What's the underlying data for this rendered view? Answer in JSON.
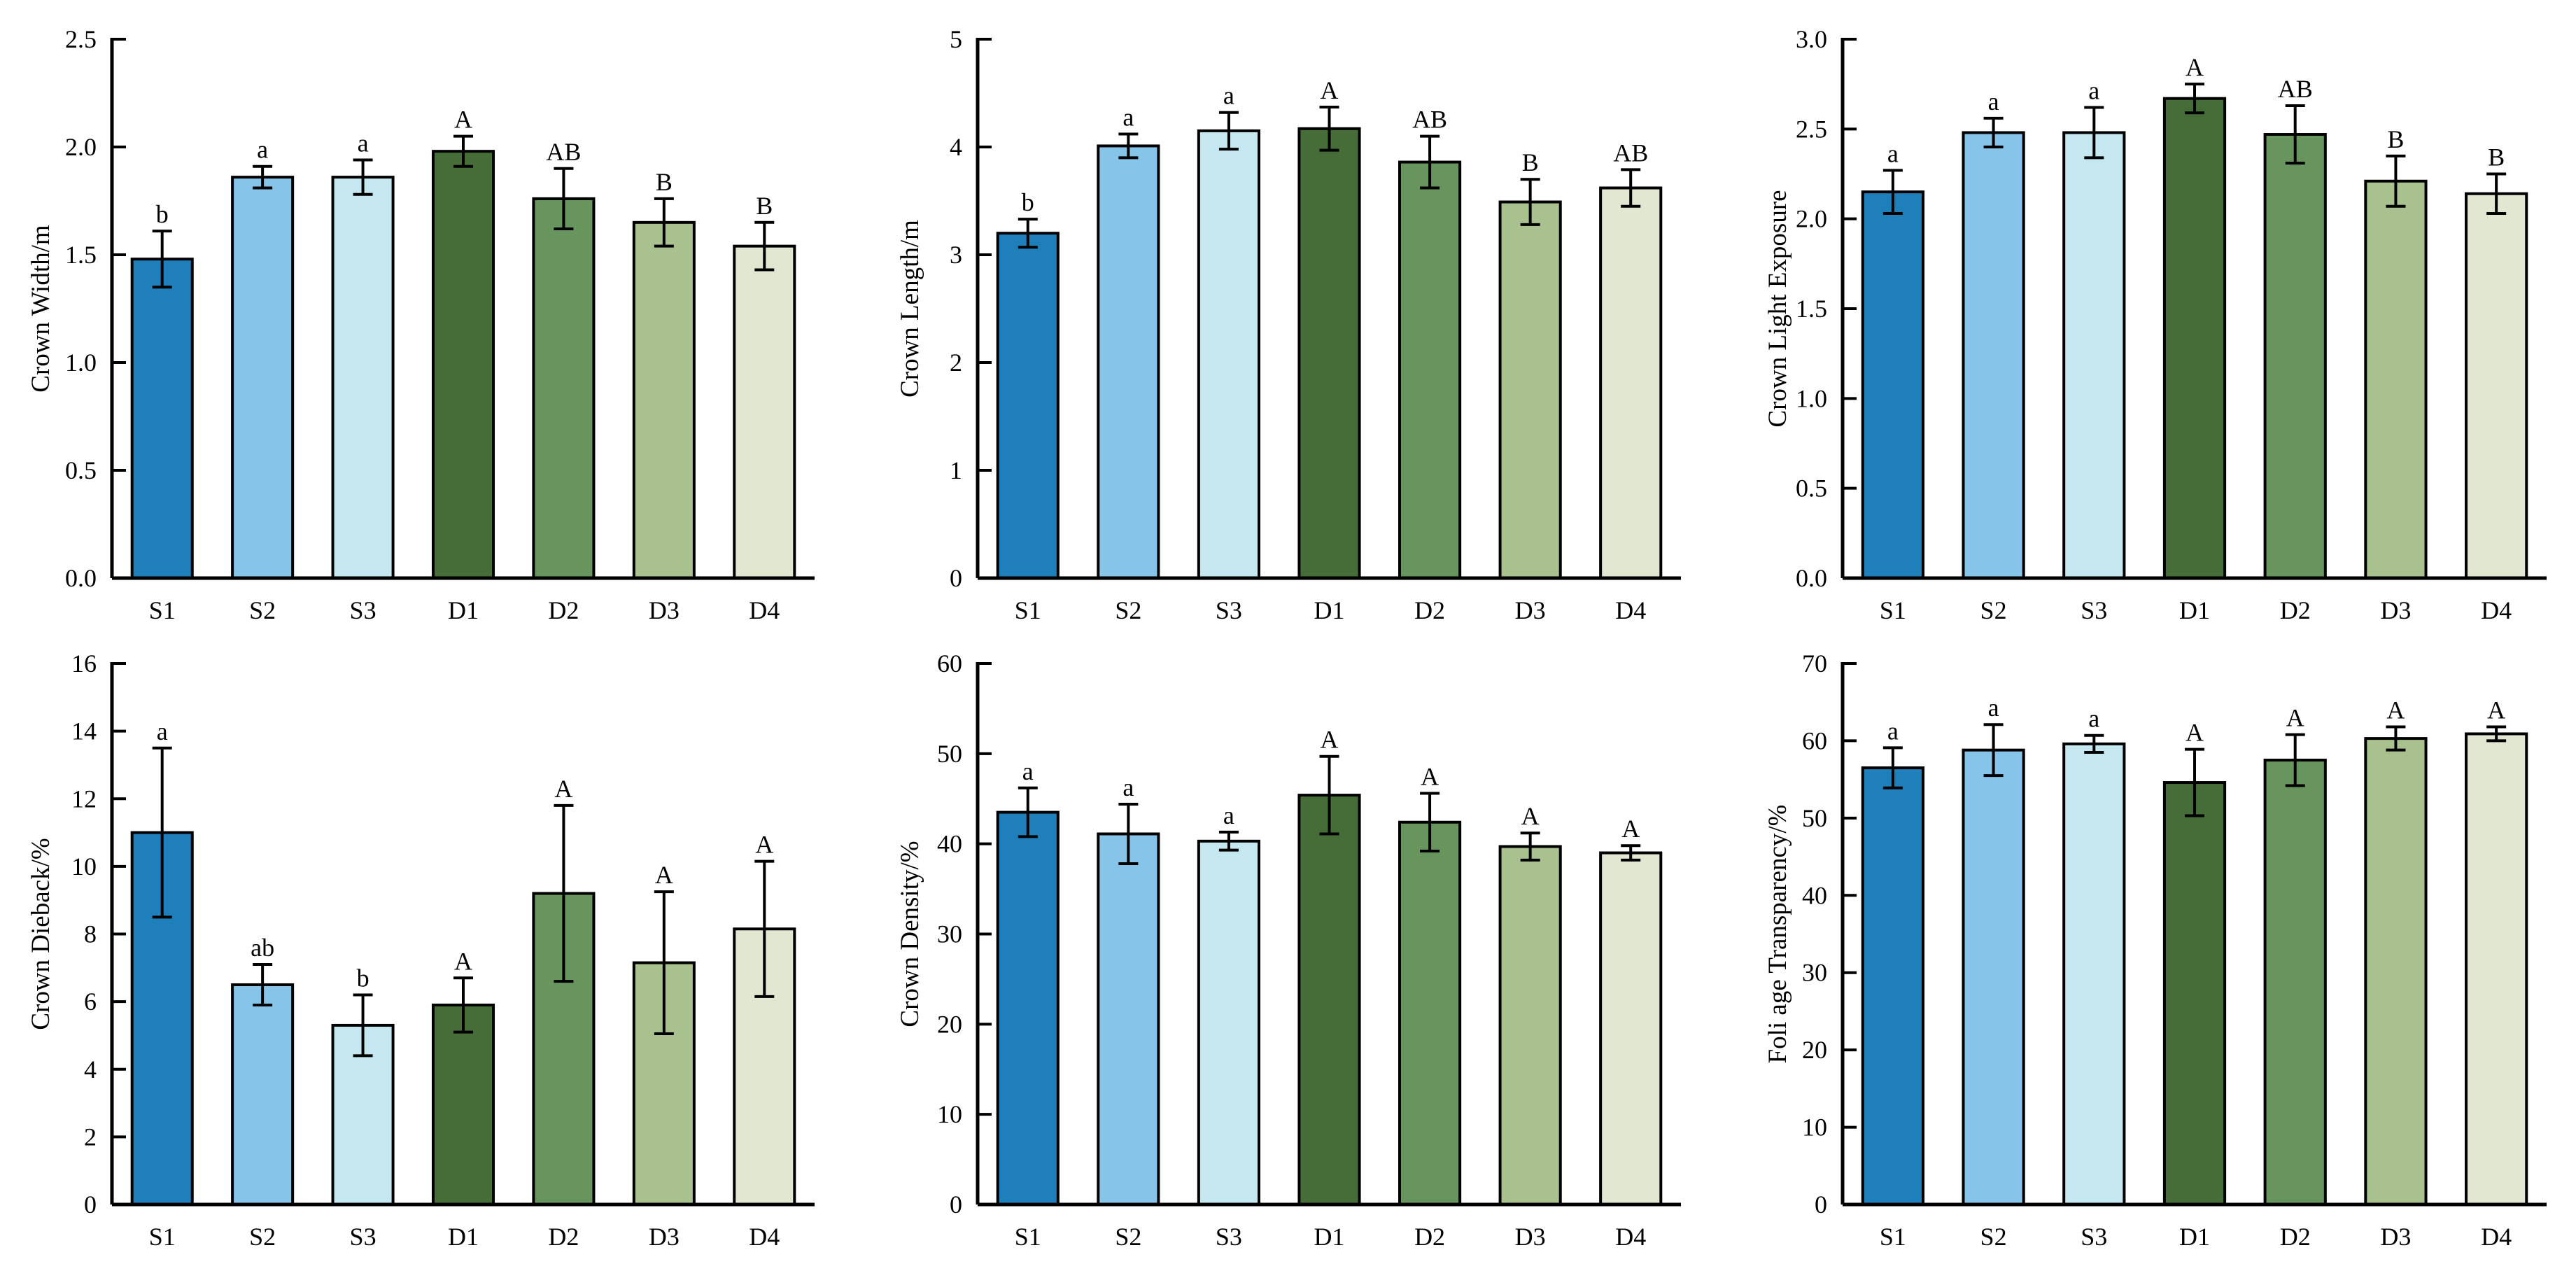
{
  "chart_data": [
    {
      "type": "bar",
      "title": "",
      "xlabel": "",
      "ylabel": "Crown Width/m",
      "ylim": [
        0,
        2.5
      ],
      "yticks": [
        "0.0",
        "0.5",
        "1.0",
        "1.5",
        "2.0",
        "2.5"
      ],
      "categories": [
        "S1",
        "S2",
        "S3",
        "D1",
        "D2",
        "D3",
        "D4"
      ],
      "values": [
        1.48,
        1.86,
        1.86,
        1.98,
        1.76,
        1.65,
        1.54
      ],
      "errors": [
        0.13,
        0.05,
        0.08,
        0.07,
        0.14,
        0.11,
        0.11
      ],
      "labels": [
        "b",
        "a",
        "a",
        "A",
        "AB",
        "B",
        "B"
      ]
    },
    {
      "type": "bar",
      "title": "",
      "xlabel": "",
      "ylabel": "Crown Length/m",
      "ylim": [
        0,
        5
      ],
      "yticks": [
        "0",
        "1",
        "2",
        "3",
        "4",
        "5"
      ],
      "categories": [
        "S1",
        "S2",
        "S3",
        "D1",
        "D2",
        "D3",
        "D4"
      ],
      "values": [
        3.2,
        4.01,
        4.15,
        4.17,
        3.86,
        3.49,
        3.62
      ],
      "errors": [
        0.13,
        0.11,
        0.17,
        0.2,
        0.24,
        0.21,
        0.17
      ],
      "labels": [
        "b",
        "a",
        "a",
        "A",
        "AB",
        "B",
        "AB"
      ]
    },
    {
      "type": "bar",
      "title": "",
      "xlabel": "",
      "ylabel": "Crown Light Exposure",
      "ylim": [
        0,
        3.0
      ],
      "yticks": [
        "0.0",
        "0.5",
        "1.0",
        "1.5",
        "2.0",
        "2.5",
        "3.0"
      ],
      "categories": [
        "S1",
        "S2",
        "S3",
        "D1",
        "D2",
        "D3",
        "D4"
      ],
      "values": [
        2.15,
        2.48,
        2.48,
        2.67,
        2.47,
        2.21,
        2.14
      ],
      "errors": [
        0.12,
        0.08,
        0.14,
        0.08,
        0.16,
        0.14,
        0.11
      ],
      "labels": [
        "a",
        "a",
        "a",
        "A",
        "AB",
        "B",
        "B"
      ]
    },
    {
      "type": "bar",
      "title": "",
      "xlabel": "",
      "ylabel": "Crown Dieback/%",
      "ylim": [
        0,
        16
      ],
      "yticks": [
        "0",
        "2",
        "4",
        "6",
        "8",
        "10",
        "12",
        "14",
        "16"
      ],
      "categories": [
        "S1",
        "S2",
        "S3",
        "D1",
        "D2",
        "D3",
        "D4"
      ],
      "values": [
        11.0,
        6.5,
        5.3,
        5.9,
        9.2,
        7.15,
        8.15
      ],
      "errors": [
        2.5,
        0.6,
        0.9,
        0.8,
        2.6,
        2.1,
        2.0
      ],
      "labels": [
        "a",
        "ab",
        "b",
        "A",
        "A",
        "A",
        "A"
      ]
    },
    {
      "type": "bar",
      "title": "",
      "xlabel": "",
      "ylabel": "Crown Density/%",
      "ylim": [
        0,
        60
      ],
      "yticks": [
        "0",
        "10",
        "20",
        "30",
        "40",
        "50",
        "60"
      ],
      "categories": [
        "S1",
        "S2",
        "S3",
        "D1",
        "D2",
        "D3",
        "D4"
      ],
      "values": [
        43.5,
        41.1,
        40.3,
        45.4,
        42.4,
        39.7,
        39.0
      ],
      "errors": [
        2.7,
        3.3,
        1.0,
        4.3,
        3.2,
        1.5,
        0.8
      ],
      "labels": [
        "a",
        "a",
        "a",
        "A",
        "A",
        "A",
        "A"
      ]
    },
    {
      "type": "bar",
      "title": "",
      "xlabel": "",
      "ylabel": "Foli age Transparency/%",
      "ylim": [
        0,
        70
      ],
      "yticks": [
        "0",
        "10",
        "20",
        "30",
        "40",
        "50",
        "60",
        "70"
      ],
      "categories": [
        "S1",
        "S2",
        "S3",
        "D1",
        "D2",
        "D3",
        "D4"
      ],
      "values": [
        56.5,
        58.8,
        59.6,
        54.6,
        57.5,
        60.3,
        60.9
      ],
      "errors": [
        2.6,
        3.3,
        1.1,
        4.3,
        3.3,
        1.5,
        0.9
      ],
      "labels": [
        "a",
        "a",
        "a",
        "A",
        "A",
        "A",
        "A"
      ]
    }
  ],
  "colors": [
    "#1f7fba",
    "#87c4ea",
    "#c5e8f0",
    "#466c38",
    "#68955e",
    "#a9c08f",
    "#e2e7d1"
  ]
}
